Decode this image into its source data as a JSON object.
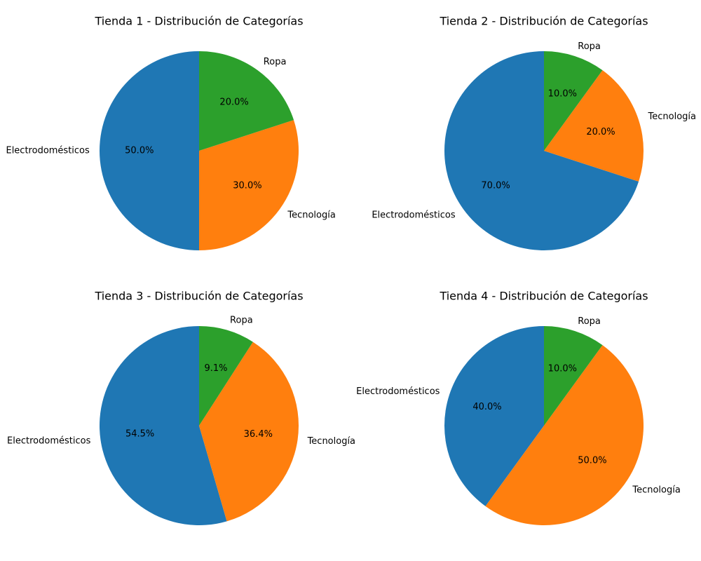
{
  "chart_data": [
    {
      "type": "pie",
      "title": "Tienda 1 - Distribución de Categorías",
      "categories": [
        "Electrodomésticos",
        "Tecnología",
        "Ropa"
      ],
      "values": [
        50.0,
        30.0,
        20.0
      ],
      "percent_labels": [
        "50.0%",
        "30.0%",
        "20.0%"
      ],
      "colors": [
        "#1f77b4",
        "#ff7f0e",
        "#2ca02c"
      ]
    },
    {
      "type": "pie",
      "title": "Tienda 2 - Distribución de Categorías",
      "categories": [
        "Electrodomésticos",
        "Tecnología",
        "Ropa"
      ],
      "values": [
        70.0,
        20.0,
        10.0
      ],
      "percent_labels": [
        "70.0%",
        "20.0%",
        "10.0%"
      ],
      "colors": [
        "#1f77b4",
        "#ff7f0e",
        "#2ca02c"
      ]
    },
    {
      "type": "pie",
      "title": "Tienda 3 - Distribución de Categorías",
      "categories": [
        "Electrodomésticos",
        "Tecnología",
        "Ropa"
      ],
      "values": [
        54.5,
        36.4,
        9.1
      ],
      "percent_labels": [
        "54.5%",
        "36.4%",
        "9.1%"
      ],
      "colors": [
        "#1f77b4",
        "#ff7f0e",
        "#2ca02c"
      ]
    },
    {
      "type": "pie",
      "title": "Tienda 4 - Distribución de Categorías",
      "categories": [
        "Electrodomésticos",
        "Tecnología",
        "Ropa"
      ],
      "values": [
        40.0,
        50.0,
        10.0
      ],
      "percent_labels": [
        "40.0%",
        "50.0%",
        "10.0%"
      ],
      "colors": [
        "#1f77b4",
        "#ff7f0e",
        "#2ca02c"
      ]
    }
  ]
}
